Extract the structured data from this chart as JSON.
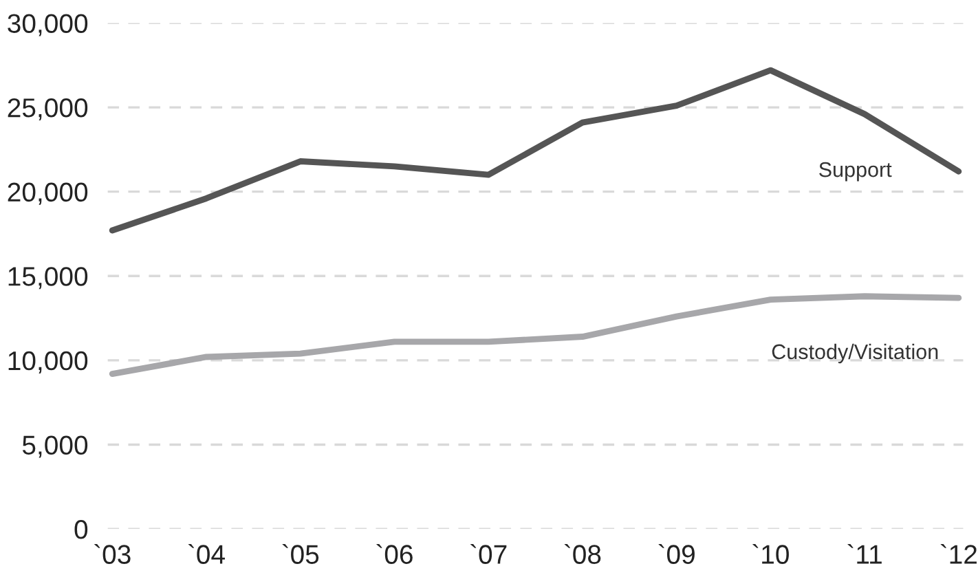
{
  "chart_data": {
    "type": "line",
    "categories": [
      "`03",
      "`04",
      "`05",
      "`06",
      "`07",
      "`08",
      "`09",
      "`10",
      "`11",
      "`12"
    ],
    "series": [
      {
        "name": "Support",
        "color": "#555555",
        "values": [
          17700,
          19600,
          21800,
          21500,
          21000,
          24100,
          25100,
          27200,
          24600,
          21200
        ]
      },
      {
        "name": "Custody/Visitation",
        "color": "#a7a7aa",
        "values": [
          9200,
          10200,
          10400,
          11100,
          11100,
          11400,
          12600,
          13600,
          13800,
          13700
        ]
      }
    ],
    "ylim": [
      0,
      30000
    ],
    "yticks": [
      {
        "value": 0,
        "label": "0"
      },
      {
        "value": 5000,
        "label": "5,000"
      },
      {
        "value": 10000,
        "label": "10,000"
      },
      {
        "value": 15000,
        "label": "15,000"
      },
      {
        "value": 20000,
        "label": "20,000"
      },
      {
        "value": 25000,
        "label": "25,000"
      },
      {
        "value": 30000,
        "label": "30,000"
      }
    ],
    "grid": "y",
    "legend": false,
    "marker": "none",
    "line_style": "solid"
  }
}
